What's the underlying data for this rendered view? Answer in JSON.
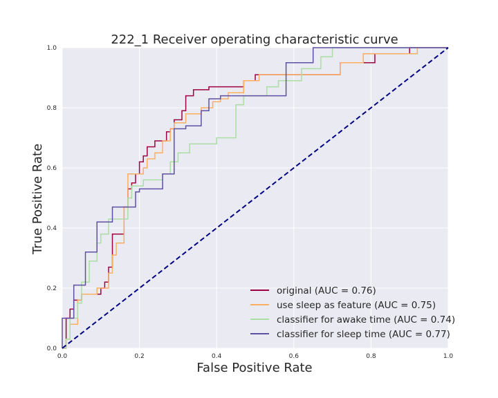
{
  "chart_data": {
    "type": "line",
    "title": "222_1 Receiver operating characteristic curve",
    "xlabel": "False Positive Rate",
    "ylabel": "True Positive Rate",
    "xlim": [
      0.0,
      1.0
    ],
    "ylim": [
      0.0,
      1.0
    ],
    "xticks": [
      "0.0",
      "0.2",
      "0.4",
      "0.6",
      "0.8",
      "1.0"
    ],
    "yticks": [
      "0.0",
      "0.2",
      "0.4",
      "0.6",
      "0.8",
      "1.0"
    ],
    "grid": true,
    "legend_position": "lower-right",
    "background_color": "#EAEAF2",
    "diagonal": {
      "x": [
        0,
        1
      ],
      "y": [
        0,
        1
      ],
      "color": "#000080",
      "style": "dashed"
    },
    "series": [
      {
        "name": "original (AUC = 0.76)",
        "color": "#9E0142",
        "x": [
          0.0,
          0.01,
          0.01,
          0.02,
          0.02,
          0.03,
          0.03,
          0.05,
          0.05,
          0.1,
          0.1,
          0.11,
          0.11,
          0.12,
          0.12,
          0.13,
          0.13,
          0.16,
          0.16,
          0.17,
          0.17,
          0.18,
          0.18,
          0.19,
          0.19,
          0.2,
          0.2,
          0.21,
          0.21,
          0.22,
          0.22,
          0.24,
          0.24,
          0.27,
          0.27,
          0.28,
          0.28,
          0.29,
          0.29,
          0.31,
          0.31,
          0.32,
          0.32,
          0.34,
          0.34,
          0.38,
          0.38,
          0.4,
          0.4,
          0.47,
          0.47,
          0.5,
          0.5,
          0.58,
          0.58,
          0.64,
          0.64,
          0.72,
          0.72,
          0.78,
          0.78,
          0.81,
          0.81,
          0.9,
          0.9,
          1.0
        ],
        "y": [
          0.0,
          0.0,
          0.1,
          0.1,
          0.13,
          0.13,
          0.16,
          0.16,
          0.18,
          0.18,
          0.2,
          0.2,
          0.22,
          0.22,
          0.27,
          0.27,
          0.38,
          0.38,
          0.47,
          0.47,
          0.53,
          0.53,
          0.55,
          0.55,
          0.58,
          0.58,
          0.62,
          0.62,
          0.64,
          0.64,
          0.67,
          0.67,
          0.69,
          0.69,
          0.72,
          0.72,
          0.73,
          0.73,
          0.76,
          0.76,
          0.79,
          0.79,
          0.84,
          0.84,
          0.86,
          0.86,
          0.87,
          0.87,
          0.87,
          0.87,
          0.89,
          0.89,
          0.91,
          0.91,
          0.91,
          0.91,
          0.91,
          0.91,
          0.95,
          0.95,
          0.95,
          0.95,
          0.98,
          0.98,
          1.0,
          1.0
        ]
      },
      {
        "name": "use sleep as feature (AUC = 0.75)",
        "color": "#FDAE61",
        "x": [
          0.0,
          0.01,
          0.01,
          0.02,
          0.02,
          0.04,
          0.04,
          0.05,
          0.05,
          0.09,
          0.09,
          0.12,
          0.12,
          0.13,
          0.13,
          0.14,
          0.14,
          0.16,
          0.16,
          0.17,
          0.17,
          0.21,
          0.21,
          0.22,
          0.22,
          0.24,
          0.24,
          0.26,
          0.26,
          0.28,
          0.28,
          0.29,
          0.29,
          0.32,
          0.32,
          0.36,
          0.36,
          0.39,
          0.39,
          0.41,
          0.41,
          0.43,
          0.43,
          0.47,
          0.47,
          0.51,
          0.51,
          0.52,
          0.52,
          0.72,
          0.72,
          0.78,
          0.78,
          0.86,
          0.86,
          0.92,
          0.92
        ],
        "y": [
          0.0,
          0.0,
          0.03,
          0.03,
          0.08,
          0.08,
          0.16,
          0.16,
          0.18,
          0.18,
          0.2,
          0.2,
          0.25,
          0.25,
          0.31,
          0.31,
          0.35,
          0.35,
          0.47,
          0.47,
          0.58,
          0.58,
          0.6,
          0.6,
          0.63,
          0.63,
          0.65,
          0.65,
          0.69,
          0.69,
          0.73,
          0.73,
          0.75,
          0.75,
          0.78,
          0.78,
          0.8,
          0.8,
          0.82,
          0.82,
          0.83,
          0.83,
          0.85,
          0.85,
          0.89,
          0.89,
          0.91,
          0.91,
          0.91,
          0.91,
          0.95,
          0.95,
          0.98,
          0.98,
          0.98,
          0.98,
          1.0
        ]
      },
      {
        "name": "classifier for awake time (AUC = 0.74)",
        "color": "#ABDDA4",
        "x": [
          0.0,
          0.01,
          0.01,
          0.02,
          0.02,
          0.04,
          0.04,
          0.05,
          0.05,
          0.07,
          0.07,
          0.09,
          0.09,
          0.1,
          0.1,
          0.12,
          0.12,
          0.17,
          0.17,
          0.18,
          0.18,
          0.21,
          0.21,
          0.26,
          0.26,
          0.28,
          0.28,
          0.3,
          0.3,
          0.33,
          0.33,
          0.4,
          0.4,
          0.45,
          0.45,
          0.47,
          0.47,
          0.53,
          0.53,
          0.56,
          0.56,
          0.62,
          0.62,
          0.67,
          0.67,
          0.7,
          0.7,
          1.0
        ],
        "y": [
          0.0,
          0.0,
          0.03,
          0.03,
          0.1,
          0.1,
          0.15,
          0.15,
          0.22,
          0.22,
          0.29,
          0.29,
          0.35,
          0.35,
          0.38,
          0.38,
          0.43,
          0.43,
          0.5,
          0.5,
          0.54,
          0.54,
          0.56,
          0.56,
          0.58,
          0.58,
          0.62,
          0.62,
          0.65,
          0.65,
          0.68,
          0.68,
          0.7,
          0.7,
          0.81,
          0.81,
          0.84,
          0.84,
          0.87,
          0.87,
          0.89,
          0.89,
          0.93,
          0.93,
          0.97,
          0.97,
          1.0,
          1.0
        ]
      },
      {
        "name": "classifier for sleep time (AUC = 0.77)",
        "color": "#5E4FA2",
        "x": [
          0.0,
          0.0,
          0.03,
          0.03,
          0.06,
          0.06,
          0.09,
          0.09,
          0.13,
          0.13,
          0.19,
          0.19,
          0.2,
          0.2,
          0.26,
          0.26,
          0.29,
          0.29,
          0.32,
          0.32,
          0.36,
          0.36,
          0.38,
          0.38,
          0.41,
          0.41,
          0.46,
          0.46,
          0.58,
          0.58,
          0.65,
          0.65,
          1.0
        ],
        "y": [
          0.0,
          0.1,
          0.1,
          0.21,
          0.21,
          0.32,
          0.32,
          0.42,
          0.42,
          0.47,
          0.47,
          0.52,
          0.52,
          0.53,
          0.53,
          0.58,
          0.58,
          0.73,
          0.73,
          0.74,
          0.74,
          0.79,
          0.79,
          0.83,
          0.83,
          0.84,
          0.84,
          0.84,
          0.84,
          0.95,
          0.95,
          1.0,
          1.0
        ]
      }
    ]
  }
}
